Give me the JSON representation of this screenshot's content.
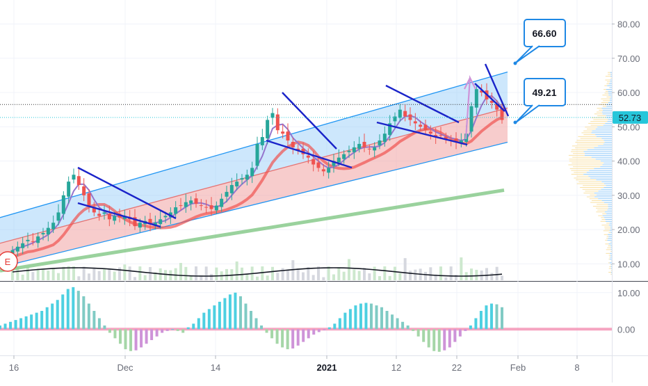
{
  "chart_data": [
    {
      "type": "candlestick",
      "panel": "price",
      "x_tick_labels": [
        "16",
        "Dec",
        "14",
        "2021",
        "12",
        "22",
        "Feb",
        "8"
      ],
      "y_tick_labels": [
        "10.00",
        "20.00",
        "30.00",
        "40.00",
        "50.00",
        "60.00",
        "70.00",
        "80.00"
      ],
      "ylim": [
        5,
        87
      ],
      "last_price": "52.73",
      "callouts": [
        {
          "label": "66.60",
          "value": 66.6
        },
        {
          "label": "49.21",
          "value": 49.21
        }
      ],
      "earnings_marker": "E",
      "channel": {
        "upper_start": 23.5,
        "upper_end": 66,
        "mid_start": 16,
        "mid_end": 55.5,
        "lower_start": 9,
        "lower_end": 45.5
      },
      "long_ma": {
        "start": 8,
        "end": 31.5
      },
      "fast_ma_color": "#9575cd",
      "slow_ma_color": "#ef5350",
      "long_ma_color": "#81c784",
      "up_color": "#26a69a",
      "down_color": "#ef5350",
      "channel_upper_fill": "#90caf9",
      "channel_lower_fill": "#ef9a9a",
      "flag_color": "#1a23c9",
      "arrow_color": "#ce93d8",
      "price_line_color": "#26c6da",
      "close": [
        14,
        15,
        16,
        17,
        16.5,
        18,
        19,
        20.5,
        22,
        25,
        30,
        34,
        36,
        33,
        30,
        27,
        25,
        24,
        25,
        23,
        24,
        23.5,
        24,
        23,
        21,
        22,
        22.5,
        21.5,
        22,
        23,
        24,
        25,
        26.5,
        27,
        28,
        28.5,
        27.5,
        27,
        26.5,
        26,
        27,
        29,
        31,
        33,
        34,
        35,
        36,
        38,
        45,
        47,
        52,
        54,
        49,
        48,
        46,
        44,
        43,
        42,
        41,
        39,
        38,
        37,
        38,
        40,
        41,
        42,
        43,
        44,
        45,
        44,
        43.5,
        44,
        46,
        48,
        51,
        53,
        55,
        53,
        52,
        51,
        50,
        49,
        48,
        47,
        47.5,
        46.5,
        46,
        45.5,
        46,
        48,
        56,
        61,
        60,
        58,
        57,
        55,
        52
      ]
    },
    {
      "type": "histogram",
      "panel": "oscillator",
      "y_tick_labels": [
        "0.00",
        "10.00"
      ],
      "ylim": [
        -7,
        13
      ],
      "positive_color": "#4dd0e1",
      "negative_color": "#ce93d8",
      "values": [
        1,
        1.5,
        2,
        2.5,
        3,
        3.5,
        4,
        4.5,
        5,
        6,
        7,
        8,
        9.5,
        11,
        11.5,
        10.5,
        9,
        7,
        5,
        3,
        1,
        -1,
        -2.5,
        -4,
        -5.5,
        -6,
        -5.8,
        -5,
        -4,
        -3,
        -2,
        -1,
        -0.5,
        0,
        -0.5,
        -1,
        0.5,
        1.5,
        3,
        4.5,
        5.5,
        6.5,
        7.5,
        8.5,
        9.5,
        10,
        9,
        7,
        5,
        3,
        1,
        -1,
        -2.5,
        -4,
        -5,
        -5.5,
        -5.3,
        -4.5,
        -3.5,
        -2.5,
        -1.5,
        -0.8,
        -0.3,
        0.5,
        1.5,
        3,
        4.5,
        5.5,
        6.5,
        7,
        7.2,
        7,
        6.5,
        6,
        5,
        4,
        3,
        2,
        1,
        -0.5,
        -2,
        -3.5,
        -5,
        -6,
        -6.2,
        -5.8,
        -5,
        -3.5,
        -2,
        -0.5,
        1,
        3,
        5,
        6.5,
        7,
        6.8,
        6
      ]
    }
  ]
}
